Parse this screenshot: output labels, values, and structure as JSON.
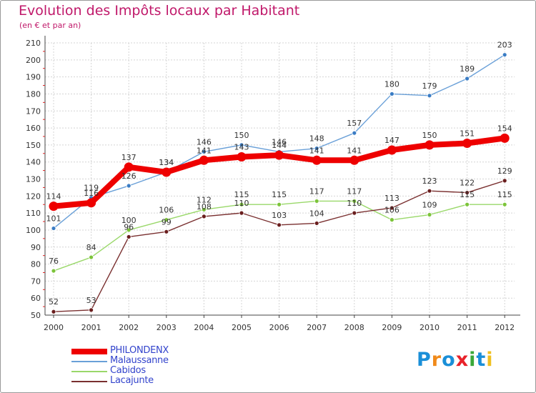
{
  "title": "Evolution des Impôts locaux par Habitant",
  "subtitle": "(en € et par an)",
  "logo": {
    "text": "Proxiti",
    "letter_colors": [
      "#1a8fd8",
      "#f08a1a",
      "#1a8fd8",
      "#e8222a",
      "#3aa83a",
      "#1a8fd8",
      "#f0c020"
    ]
  },
  "chart_data": {
    "type": "line",
    "x": [
      "2000",
      "2001",
      "2002",
      "2003",
      "2004",
      "2005",
      "2006",
      "2007",
      "2008",
      "2009",
      "2010",
      "2011",
      "2012"
    ],
    "ylim": [
      50,
      210
    ],
    "yticks": [
      50,
      60,
      70,
      80,
      90,
      100,
      110,
      120,
      130,
      140,
      150,
      160,
      170,
      180,
      190,
      200,
      210
    ],
    "grid": true,
    "legend_position": "bottom-left",
    "series": [
      {
        "name": "PHILONDENX",
        "color": "#ee0000",
        "emphasis": true,
        "values": [
          114,
          116,
          137,
          134,
          141,
          143,
          144,
          141,
          141,
          147,
          150,
          151,
          154
        ],
        "labels": [
          "114",
          "116",
          "137",
          "134",
          "141",
          "143",
          "144",
          "141",
          "141",
          "147",
          "150",
          "151",
          "154"
        ]
      },
      {
        "name": "Malaussanne",
        "color": "#6aa0d8",
        "marker_color": "#3a7cc4",
        "values": [
          101,
          119,
          126,
          134,
          146,
          150,
          146,
          148,
          157,
          180,
          179,
          189,
          203
        ],
        "labels": [
          "101",
          "119",
          "126",
          "134",
          "146",
          "150",
          "146",
          "148",
          "157",
          "180",
          "179",
          "189",
          "203"
        ]
      },
      {
        "name": "Cabidos",
        "color": "#9ad86a",
        "marker_color": "#7cc43a",
        "values": [
          76,
          84,
          100,
          106,
          112,
          115,
          115,
          117,
          117,
          106,
          109,
          115,
          115
        ],
        "labels": [
          "76",
          "84",
          "100",
          "106",
          "112",
          "115",
          "115",
          "117",
          "117",
          "106",
          "109",
          "115",
          "115"
        ]
      },
      {
        "name": "Lacajunte",
        "color": "#7a3030",
        "marker_color": "#6a1e1e",
        "values": [
          52,
          53,
          96,
          99,
          108,
          110,
          103,
          104,
          110,
          113,
          123,
          122,
          129
        ],
        "labels": [
          "52",
          "53",
          "96",
          "99",
          "108",
          "110",
          "103",
          "104",
          "110",
          "113",
          "123",
          "122",
          "129"
        ]
      }
    ]
  }
}
